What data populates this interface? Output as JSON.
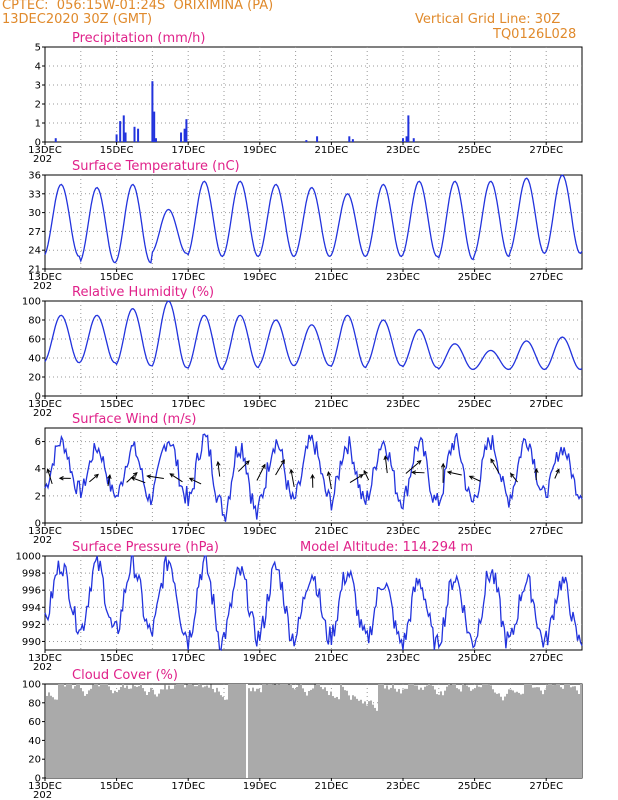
{
  "header": {
    "source": "CPTEC:",
    "coords": "056:15W-01:24S",
    "location": "ORIXIMINA (PA)",
    "date": "13DEC2020 30Z (GMT)",
    "grid_note": "Vertical Grid Line: 30Z",
    "run_id": "TQ0126L028"
  },
  "colors": {
    "header": "#e08a2c",
    "title": "#e0228a",
    "line": "#2233dd",
    "cloud": "#aaaaaa",
    "grid": "#999999"
  },
  "x_axis": {
    "labels": [
      "13DEC",
      "15DEC",
      "17DEC",
      "19DEC",
      "21DEC",
      "23DEC",
      "25DEC",
      "27DEC"
    ],
    "corner_label": "202",
    "days": 15
  },
  "chart_data": [
    {
      "type": "bar",
      "title": "Precipitation (mm/h)",
      "ylim": [
        0,
        5
      ],
      "yticks": [
        "0",
        "1",
        "2",
        "3",
        "4",
        "5"
      ],
      "x": [
        0.3,
        2.0,
        2.1,
        2.2,
        2.25,
        2.5,
        2.6,
        3.0,
        3.05,
        3.1,
        3.8,
        3.9,
        3.95,
        7.3,
        7.6,
        8.5,
        8.6,
        10.0,
        10.1,
        10.15,
        10.3
      ],
      "values": [
        0.2,
        0.4,
        1.1,
        1.4,
        0.5,
        0.8,
        0.7,
        3.2,
        1.6,
        0.2,
        0.5,
        0.7,
        1.2,
        0.1,
        0.3,
        0.3,
        0.15,
        0.2,
        0.3,
        1.4,
        0.2
      ]
    },
    {
      "type": "line",
      "title": "Surface Temperature (nC)",
      "ylim": [
        21,
        36
      ],
      "yticks": [
        "21",
        "24",
        "27",
        "30",
        "33",
        "36"
      ],
      "day_max": [
        34.5,
        34,
        34.5,
        30.5,
        35,
        35,
        34.5,
        34,
        33,
        34.5,
        35,
        35,
        35,
        35.5,
        36
      ],
      "day_min": [
        23,
        22,
        22,
        23.5,
        23,
        23,
        23,
        23,
        23,
        23,
        23,
        22.5,
        23,
        23.5,
        23.5
      ]
    },
    {
      "type": "line",
      "title": "Relative Humidity (%)",
      "ylim": [
        0,
        100
      ],
      "yticks": [
        "0",
        "20",
        "40",
        "60",
        "80",
        "100"
      ],
      "day_max": [
        85,
        85,
        92,
        100,
        85,
        85,
        80,
        75,
        85,
        80,
        70,
        55,
        48,
        58,
        62
      ],
      "day_min": [
        35,
        35,
        32,
        30,
        28,
        30,
        32,
        32,
        30,
        32,
        30,
        28,
        28,
        28,
        28
      ]
    },
    {
      "type": "line",
      "title": "Surface Wind (m/s)",
      "ylim": [
        0,
        7
      ],
      "yticks": [
        "0",
        "2",
        "4",
        "6"
      ],
      "day_max": [
        6,
        5.5,
        5.5,
        6.2,
        6.2,
        5.8,
        6,
        6,
        5.8,
        6,
        5.8,
        6,
        6,
        6.2,
        5.5
      ],
      "day_min": [
        2.5,
        2.2,
        1.8,
        2,
        1.2,
        0.5,
        1.5,
        1.8,
        1.5,
        1.8,
        1.5,
        1.5,
        1.8,
        2,
        2.2
      ]
    },
    {
      "type": "line",
      "title": "Surface Pressure (hPa)",
      "annotation": "Model Altitude: 114.294 m",
      "ylim": [
        989,
        1000
      ],
      "yticks": [
        "990",
        "992",
        "994",
        "996",
        "998",
        "1000"
      ],
      "day_max": [
        999,
        999,
        999,
        999.5,
        999,
        998,
        998.5,
        998,
        998,
        997,
        997,
        997.5,
        998,
        997,
        997
      ],
      "day_min": [
        992,
        991,
        991,
        991,
        990,
        990.5,
        990.5,
        990.5,
        990.5,
        990,
        989.5,
        990,
        990,
        990,
        990
      ]
    },
    {
      "type": "bar",
      "title": "Cloud Cover (%)",
      "ylim": [
        0,
        100
      ],
      "yticks": [
        "0",
        "20",
        "40",
        "60",
        "80",
        "100"
      ],
      "typical_range": [
        80,
        100
      ]
    }
  ]
}
